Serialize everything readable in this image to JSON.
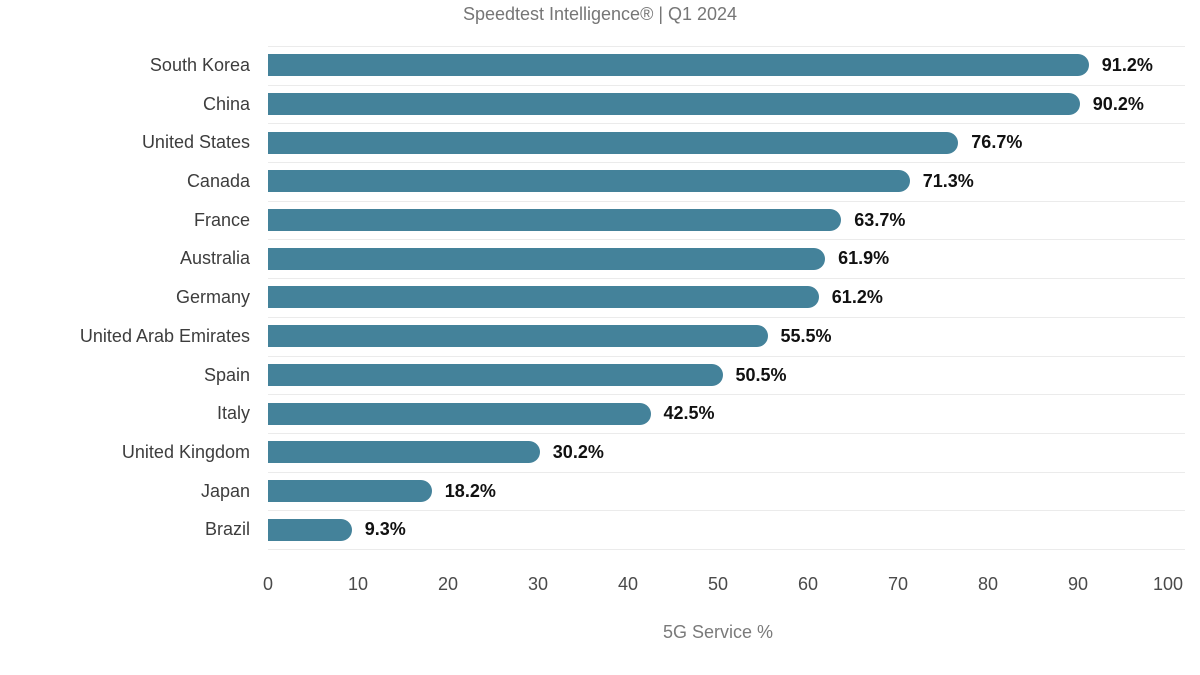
{
  "page": {
    "background": "#ffffff"
  },
  "chart_data": {
    "type": "bar",
    "orientation": "horizontal",
    "title": "Speedtest Intelligence® | Q1 2024",
    "xlabel": "5G Service %",
    "xlim": [
      0,
      100
    ],
    "x_ticks": [
      "0",
      "10",
      "20",
      "30",
      "40",
      "50",
      "60",
      "70",
      "80",
      "90",
      "100"
    ],
    "grid": "horizontal-row-separators",
    "legend": "none",
    "categories": [
      "South Korea",
      "China",
      "United States",
      "Canada",
      "France",
      "Australia",
      "Germany",
      "United Arab Emirates",
      "Spain",
      "Italy",
      "United Kingdom",
      "Japan",
      "Brazil"
    ],
    "values": [
      91.2,
      90.2,
      76.7,
      71.3,
      63.7,
      61.9,
      61.2,
      55.5,
      50.5,
      42.5,
      30.2,
      18.2,
      9.3
    ],
    "value_labels": [
      "91.2%",
      "90.2%",
      "76.7%",
      "71.3%",
      "63.7%",
      "61.9%",
      "61.2%",
      "55.5%",
      "50.5%",
      "42.5%",
      "30.2%",
      "18.2%",
      "9.3%"
    ],
    "colors": {
      "bar": "#44829A",
      "gridline": "#ebebeb",
      "category_label": "#3d3d3d",
      "value_label": "#111111",
      "tick_label": "#4a4a4a",
      "title": "#767676",
      "xlabel": "#7a7a7a"
    }
  }
}
